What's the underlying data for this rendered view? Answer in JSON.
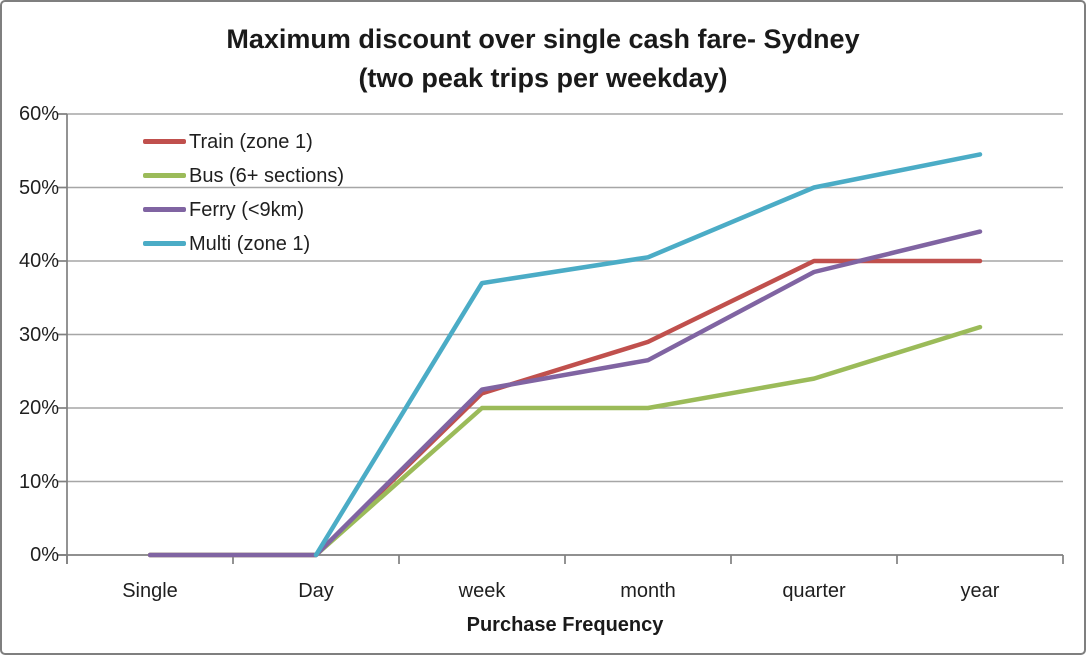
{
  "title": {
    "line1": "Maximum discount over single cash fare- Sydney",
    "line2": "(two peak trips per weekday)"
  },
  "chart_data": {
    "type": "line",
    "title": "Maximum discount over single cash fare- Sydney",
    "subtitle": "(two peak trips per weekday)",
    "categories": [
      "Single",
      "Day",
      "week",
      "month",
      "quarter",
      "year"
    ],
    "series": [
      {
        "name": "Train (zone 1)",
        "color": "#C0504D",
        "values": [
          0,
          0,
          22,
          29,
          40,
          40
        ]
      },
      {
        "name": "Bus (6+ sections)",
        "color": "#9BBB59",
        "values": [
          0,
          0,
          20,
          20,
          24,
          31
        ]
      },
      {
        "name": "Ferry (<9km)",
        "color": "#8064A2",
        "values": [
          0,
          0,
          22.5,
          26.5,
          38.5,
          44
        ]
      },
      {
        "name": "Multi (zone 1)",
        "color": "#4BACC6",
        "values": [
          null,
          0,
          37,
          40.5,
          50,
          54.5
        ]
      }
    ],
    "xlabel": "Purchase Frequency",
    "ylabel": "",
    "ylim": [
      0,
      60
    ],
    "ytick_step": 10,
    "ytick_suffix": "%",
    "grid": true,
    "legend_position": "top-left-inside"
  },
  "colors": {
    "gridline": "#A6A6A6",
    "axis": "#808080",
    "text": "#1F1F1F",
    "frame_border": "#7F7F7F",
    "background": "#FFFFFF"
  }
}
